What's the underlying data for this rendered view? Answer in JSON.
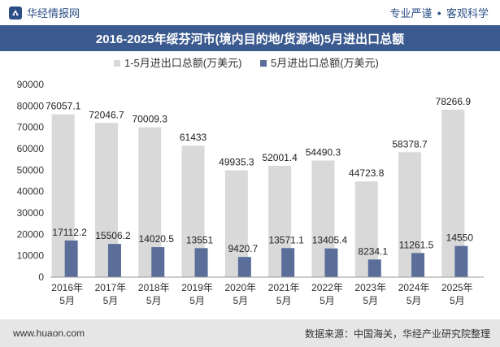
{
  "header": {
    "brand": "华经情报网",
    "tagline_left": "专业严谨",
    "tagline_sep": "●",
    "tagline_right": "客观科学"
  },
  "title": "2016-2025年绥芬河市(境内目的地/货源地)5月进出口总额",
  "footer": {
    "url": "www.huaon.com",
    "source": "数据来源：中国海关，华经产业研究院整理"
  },
  "colors": {
    "title_bg": "#3b5a8f",
    "bar_cumulative": "#d9d9d9",
    "bar_monthly": "#5a6e99",
    "footer_bg": "#e6e6e6"
  },
  "chart_data": {
    "type": "bar",
    "categories": [
      [
        "2016年",
        "5月"
      ],
      [
        "2017年",
        "5月"
      ],
      [
        "2018年",
        "5月"
      ],
      [
        "2019年",
        "5月"
      ],
      [
        "2020年",
        "5月"
      ],
      [
        "2021年",
        "5月"
      ],
      [
        "2022年",
        "5月"
      ],
      [
        "2023年",
        "5月"
      ],
      [
        "2024年",
        "5月"
      ],
      [
        "2025年",
        "5月"
      ]
    ],
    "series": [
      {
        "name": "1-5月进出口总额(万美元)",
        "values": [
          76057.1,
          72046.7,
          70009.3,
          61433,
          49935.3,
          52001.4,
          54490.3,
          44723.8,
          58378.7,
          78266.9
        ],
        "labels": [
          "76057.1",
          "72046.7",
          "70009.3",
          "61433",
          "49935.3",
          "52001.4",
          "54490.3",
          "44723.8",
          "58378.7",
          "78266.9"
        ]
      },
      {
        "name": "5月进出口总额(万美元)",
        "values": [
          17112.2,
          15506.2,
          14020.5,
          13551,
          9420.7,
          13571.1,
          13405.4,
          8234.1,
          11261.5,
          14550
        ],
        "labels": [
          "17112.2",
          "15506.2",
          "14020.5",
          "13551",
          "9420.7",
          "13571.1",
          "13405.4",
          "8234.1",
          "11261.5",
          "14550"
        ]
      }
    ],
    "ylim": [
      0,
      90000
    ],
    "yticks": [
      "0",
      "10000",
      "20000",
      "30000",
      "40000",
      "50000",
      "60000",
      "70000",
      "80000",
      "90000"
    ],
    "legend_position": "top",
    "grid": false
  }
}
